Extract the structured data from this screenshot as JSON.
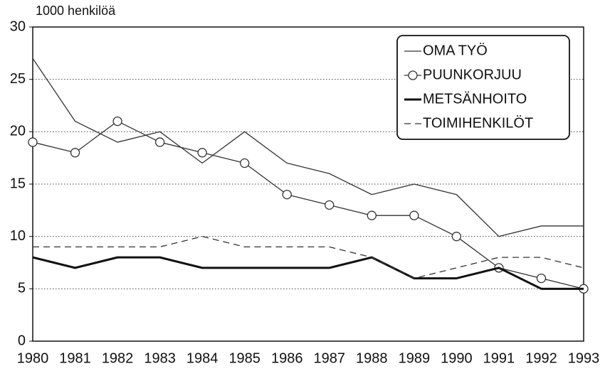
{
  "chart_data": {
    "type": "line",
    "y_axis_label": "1000 henkilöä",
    "categories": [
      "1980",
      "1981",
      "1982",
      "1983",
      "1984",
      "1985",
      "1986",
      "1987",
      "1988",
      "1989",
      "1990",
      "1991",
      "1992",
      "1993"
    ],
    "series": [
      {
        "name": "OMA TYÖ",
        "color": "#333333",
        "line_style": "thin",
        "values": [
          27,
          21,
          19,
          20,
          17,
          20,
          17,
          16,
          14,
          15,
          14,
          10,
          11,
          11
        ]
      },
      {
        "name": "PUUNKORJUU",
        "color": "#333333",
        "line_style": "thin",
        "marker": "circle",
        "values": [
          19,
          18,
          21,
          19,
          18,
          17,
          14,
          13,
          12,
          12,
          10,
          7,
          6,
          5
        ]
      },
      {
        "name": "METSÄNHOITO",
        "color": "#111111",
        "line_style": "thick",
        "values": [
          8,
          7,
          8,
          8,
          7,
          7,
          7,
          7,
          8,
          6,
          6,
          7,
          5,
          5
        ]
      },
      {
        "name": "TOIMIHENKILÖT",
        "color": "#333333",
        "line_style": "dashed",
        "values": [
          9,
          9,
          9,
          9,
          10,
          9,
          9,
          9,
          8,
          6,
          7,
          8,
          8,
          7
        ]
      }
    ],
    "ylim": [
      0,
      30
    ],
    "yticks": [
      0,
      5,
      10,
      15,
      20,
      25,
      30
    ],
    "grid": true,
    "legend": "top-right"
  }
}
